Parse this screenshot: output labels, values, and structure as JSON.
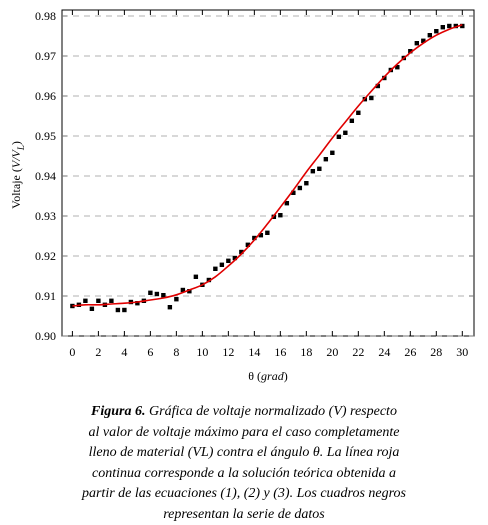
{
  "chart_data": {
    "type": "scatter",
    "x_label": {
      "symbol": "θ (",
      "unit": "grad",
      "end": ")"
    },
    "y_label": {
      "text": "Voltaje (",
      "italic": "V/V",
      "sub": "L",
      "end": ")"
    },
    "xlim": [
      -0.8,
      30.9
    ],
    "ylim": [
      0.9,
      0.9815
    ],
    "xticks": [
      0,
      2,
      4,
      6,
      8,
      10,
      12,
      14,
      16,
      18,
      20,
      22,
      24,
      26,
      28,
      30
    ],
    "yticks": [
      {
        "value": 0.9,
        "label": "0.90"
      },
      0.91,
      0.92,
      0.93,
      0.94,
      0.95,
      0.96,
      0.97,
      0.98
    ],
    "grid": true,
    "series": [
      {
        "type": "scatter",
        "color": "#000000",
        "x": [
          0,
          0.5,
          1,
          1.5,
          2,
          2.5,
          3,
          3.5,
          4,
          4.5,
          5,
          5.5,
          6,
          6.5,
          7,
          7.5,
          8,
          8.5,
          9,
          9.5,
          10,
          10.5,
          11,
          11.5,
          12,
          12.5,
          13,
          13.5,
          14,
          14.5,
          15,
          15.5,
          16,
          16.5,
          17,
          17.5,
          18,
          18.5,
          19,
          19.5,
          20,
          20.5,
          21,
          21.5,
          22,
          22.5,
          23,
          23.5,
          24,
          24.5,
          25,
          25.5,
          26,
          26.5,
          27,
          27.5,
          28,
          28.5,
          29,
          29.5,
          30
        ],
        "values": [
          0.9075,
          0.9078,
          0.9088,
          0.9068,
          0.9088,
          0.9078,
          0.9088,
          0.9065,
          0.9065,
          0.9085,
          0.9082,
          0.9088,
          0.9108,
          0.9105,
          0.9102,
          0.9072,
          0.9092,
          0.9115,
          0.9112,
          0.9148,
          0.9128,
          0.914,
          0.9168,
          0.9178,
          0.9188,
          0.9195,
          0.921,
          0.9228,
          0.9245,
          0.9252,
          0.9258,
          0.9298,
          0.9302,
          0.9332,
          0.9358,
          0.937,
          0.9382,
          0.9412,
          0.9418,
          0.9442,
          0.9458,
          0.9498,
          0.9508,
          0.9538,
          0.9558,
          0.9592,
          0.9595,
          0.9625,
          0.9645,
          0.9665,
          0.9672,
          0.9695,
          0.9712,
          0.9732,
          0.9738,
          0.9752,
          0.9762,
          0.9772,
          0.9775,
          0.9775,
          0.9775
        ]
      },
      {
        "type": "line",
        "color": "#e00000",
        "x": [
          0,
          1,
          2,
          3,
          4,
          5,
          6,
          7,
          8,
          9,
          10,
          11,
          12,
          13,
          14,
          15,
          16,
          17,
          18,
          19,
          20,
          21,
          22,
          23,
          24,
          25,
          26,
          27,
          28,
          29,
          30
        ],
        "values": [
          0.9075,
          0.9078,
          0.9078,
          0.908,
          0.9082,
          0.9085,
          0.909,
          0.9095,
          0.9103,
          0.9115,
          0.9128,
          0.9148,
          0.9175,
          0.9205,
          0.924,
          0.928,
          0.9322,
          0.9365,
          0.941,
          0.9452,
          0.9495,
          0.9535,
          0.9575,
          0.9612,
          0.9648,
          0.968,
          0.9708,
          0.9732,
          0.9752,
          0.9767,
          0.9778
        ]
      }
    ]
  },
  "caption": {
    "label": "Figura 6.",
    "lines": [
      " Gráfica de voltaje normalizado (V) respecto",
      "al valor de voltaje máximo para el caso completamente",
      "lleno de material (VL) contra el ángulo θ. La línea roja",
      "continua corresponde a la solución teórica obtenida a",
      "partir de las ecuaciones (1), (2) y (3). Los cuadros negros",
      "representan la serie de datos"
    ]
  }
}
